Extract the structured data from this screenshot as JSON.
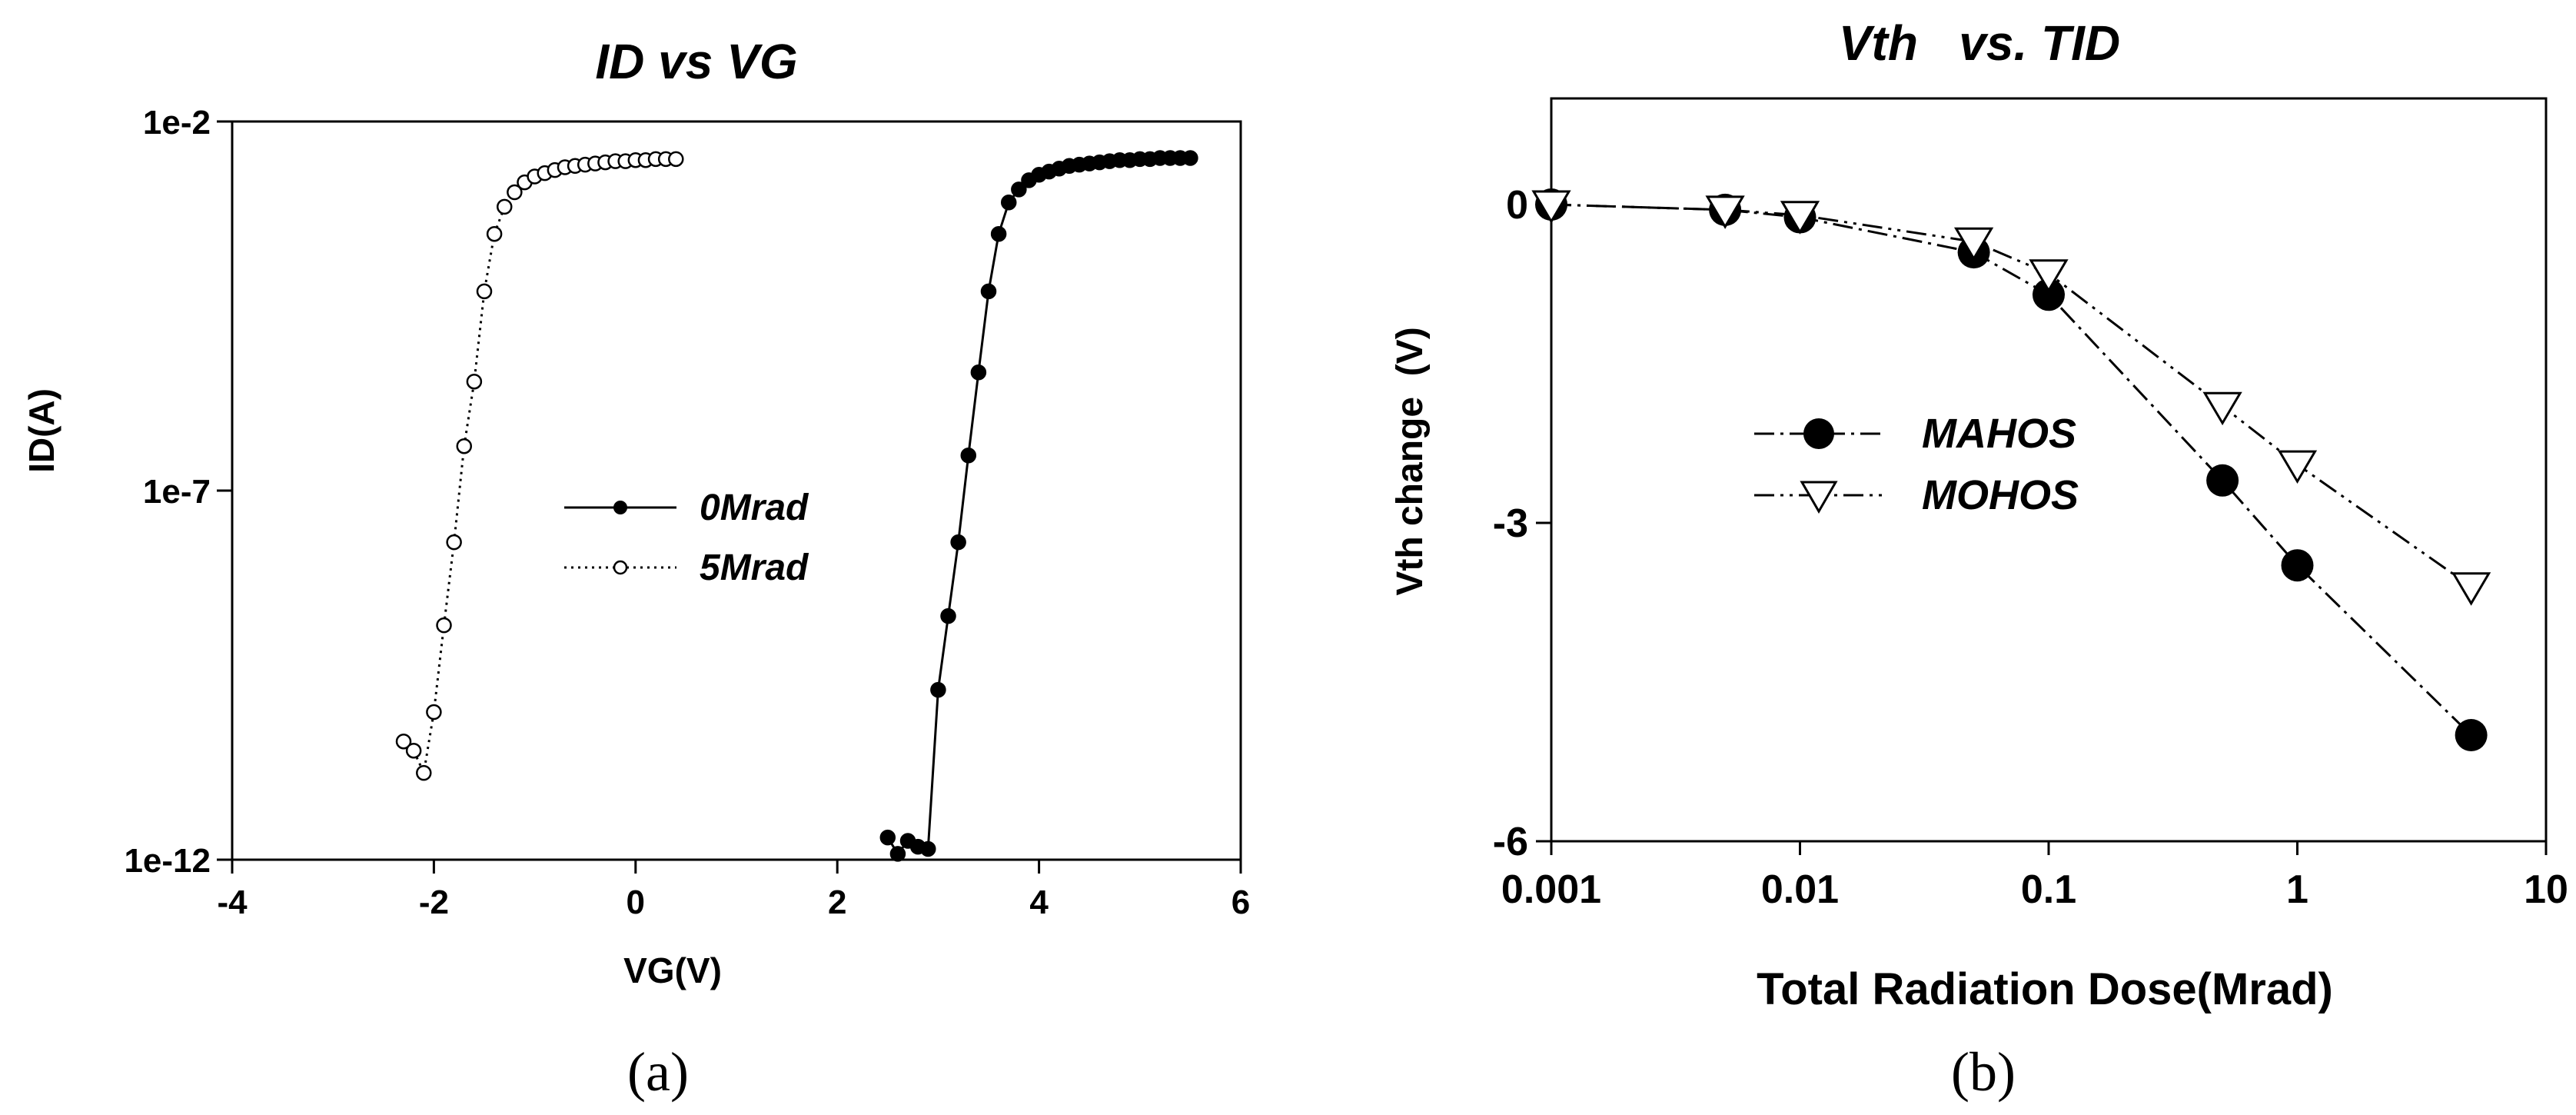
{
  "chart_data": [
    {
      "type": "scatter",
      "title": "ID vs VG",
      "xlabel": "VG(V)",
      "ylabel": "ID(A)",
      "xlim": [
        -4,
        6
      ],
      "xticks": [
        -4,
        -2,
        0,
        2,
        4,
        6
      ],
      "yscale": "log",
      "ylim": [
        1e-12,
        0.01
      ],
      "yticks": [
        1e-12,
        1e-07,
        0.01
      ],
      "ytick_labels": [
        "1e-12",
        "1e-7",
        "1e-2"
      ],
      "legend_position": "center",
      "series": [
        {
          "name": "0Mrad",
          "marker": "filled-circle",
          "line": "solid",
          "x": [
            2.5,
            2.6,
            2.7,
            2.8,
            2.9,
            3.0,
            3.1,
            3.2,
            3.3,
            3.4,
            3.5,
            3.6,
            3.7,
            3.8,
            3.9,
            4.0,
            4.1,
            4.2,
            4.3,
            4.4,
            4.5,
            4.6,
            4.7,
            4.8,
            4.9,
            5.0,
            5.1,
            5.2,
            5.3,
            5.4,
            5.5
          ],
          "y": [
            2e-12,
            1.2e-12,
            1.8e-12,
            1.5e-12,
            1.4e-12,
            2e-10,
            2e-09,
            2e-08,
            3e-07,
            4e-06,
            5e-05,
            0.0003,
            0.0008,
            0.0012,
            0.0016,
            0.0019,
            0.0021,
            0.0023,
            0.0025,
            0.0026,
            0.0027,
            0.0028,
            0.0029,
            0.003,
            0.003,
            0.0031,
            0.0031,
            0.0032,
            0.0032,
            0.0032,
            0.0032
          ]
        },
        {
          "name": "5Mrad",
          "marker": "open-circle",
          "line": "dotted",
          "x": [
            -2.3,
            -2.2,
            -2.1,
            -2.0,
            -1.9,
            -1.8,
            -1.7,
            -1.6,
            -1.5,
            -1.4,
            -1.3,
            -1.2,
            -1.1,
            -1.0,
            -0.9,
            -0.8,
            -0.7,
            -0.6,
            -0.5,
            -0.4,
            -0.3,
            -0.2,
            -0.1,
            0.0,
            0.1,
            0.2,
            0.3,
            0.4
          ],
          "y": [
            4e-11,
            3e-11,
            1.5e-11,
            1e-10,
            1.5e-09,
            2e-08,
            4e-07,
            3e-06,
            5e-05,
            0.0003,
            0.0007,
            0.0011,
            0.0015,
            0.0018,
            0.002,
            0.0022,
            0.0024,
            0.0025,
            0.0026,
            0.0027,
            0.0028,
            0.0029,
            0.0029,
            0.003,
            0.003,
            0.0031,
            0.0031,
            0.0031
          ]
        }
      ]
    },
    {
      "type": "line",
      "title": "Vth   vs. TID",
      "xlabel": "Total Radiation Dose(Mrad)",
      "ylabel": "Vth change  (V)",
      "xscale": "log",
      "xlim": [
        0.001,
        10
      ],
      "xticks": [
        0.001,
        0.01,
        0.1,
        1,
        10
      ],
      "xtick_labels": [
        "0.001",
        "0.01",
        "0.1",
        "1",
        "10"
      ],
      "ylim": [
        -6,
        1
      ],
      "yticks": [
        -6,
        -3,
        0
      ],
      "ytick_labels": [
        "-6",
        "-3",
        "0"
      ],
      "legend_position": "center-left",
      "series": [
        {
          "name": "MAHOS",
          "marker": "filled-circle",
          "line": "dash-dot",
          "x": [
            0.001,
            0.005,
            0.01,
            0.05,
            0.1,
            0.5,
            1,
            5
          ],
          "y": [
            0.0,
            -0.05,
            -0.12,
            -0.45,
            -0.85,
            -2.6,
            -3.4,
            -5.0
          ]
        },
        {
          "name": "MOHOS",
          "marker": "open-triangle-down",
          "line": "dash-dot-dot",
          "x": [
            0.001,
            0.005,
            0.01,
            0.05,
            0.1,
            0.5,
            1,
            5
          ],
          "y": [
            0.0,
            -0.05,
            -0.1,
            -0.35,
            -0.65,
            -1.9,
            -2.45,
            -3.6
          ]
        }
      ]
    }
  ],
  "captions": [
    "(a)",
    "(b)"
  ]
}
